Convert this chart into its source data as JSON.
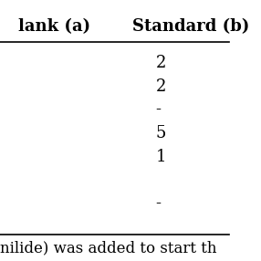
{
  "header_left": "lank (a)",
  "header_right": "Standard (b)",
  "rows": [
    "2",
    "2",
    "-",
    "5",
    "1",
    "",
    "-"
  ],
  "footer_text": "nilide) was added to start th",
  "bg_color": "#ffffff",
  "text_color": "#000000",
  "header_fontsize": 13,
  "cell_fontsize": 13,
  "footer_fontsize": 12,
  "figsize": [
    2.86,
    2.86
  ],
  "dpi": 100
}
